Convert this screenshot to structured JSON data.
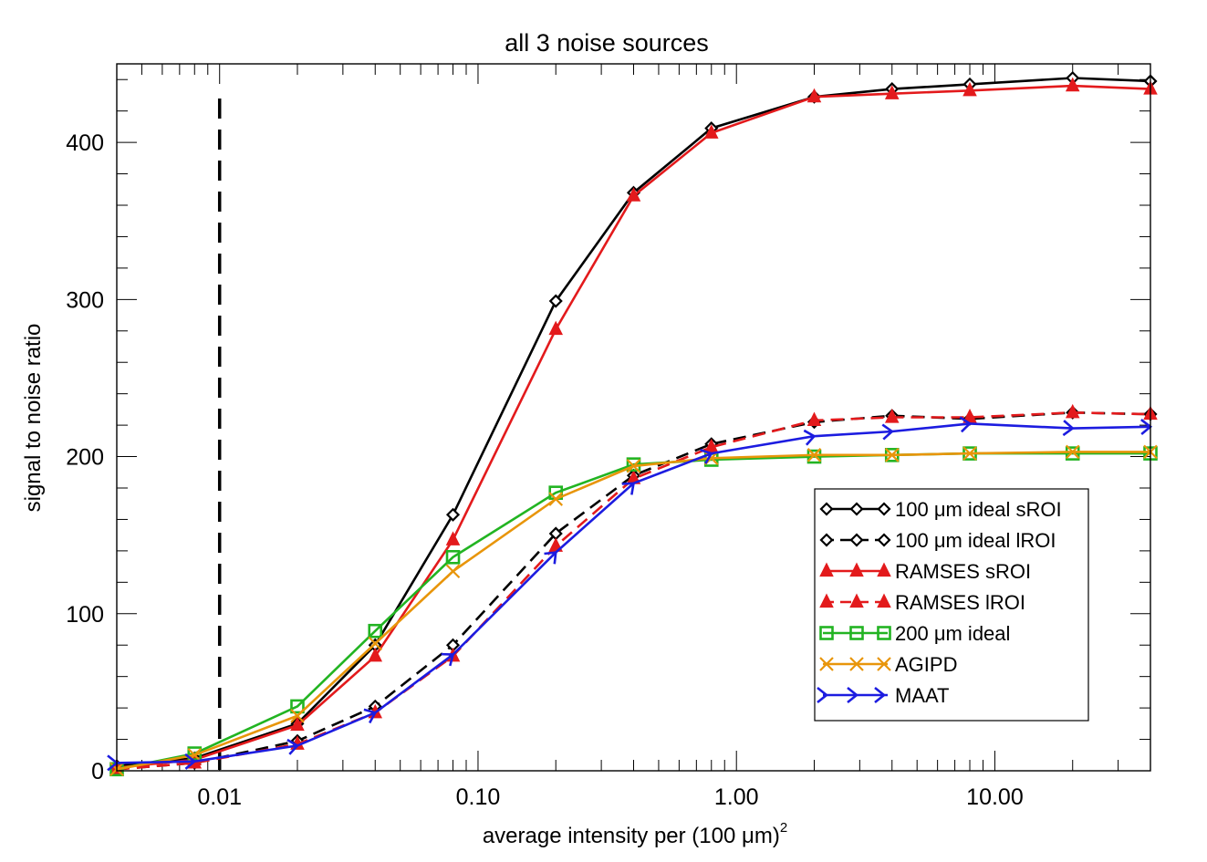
{
  "chart_data": {
    "type": "line",
    "title": "all 3 noise sources",
    "xlabel": "average intensity per (100 μm)",
    "xlabel_superscript": "2",
    "ylabel": "signal to noise ratio",
    "xscale": "log",
    "xlim": [
      0.004,
      40
    ],
    "ylim": [
      0,
      450
    ],
    "x_ticks": [
      0.01,
      0.1,
      1,
      10
    ],
    "x_tick_labels": [
      "0.01",
      "0.10",
      "1.00",
      "10.00"
    ],
    "y_ticks": [
      0,
      100,
      200,
      300,
      400
    ],
    "y_tick_labels": [
      "0",
      "100",
      "200",
      "300",
      "400"
    ],
    "reference_line": {
      "x": 0.01,
      "style": "dashed",
      "color": "#000000"
    },
    "legend_position": "center-right",
    "x": [
      0.004,
      0.008,
      0.02,
      0.04,
      0.08,
      0.2,
      0.4,
      0.8,
      2,
      4,
      8,
      20,
      40
    ],
    "series": [
      {
        "name": "100 μm ideal sROI",
        "color": "#000000",
        "dash": "solid",
        "marker": "diamond",
        "values": [
          3,
          8,
          30,
          80,
          163,
          299,
          368,
          409,
          429,
          434,
          437,
          441,
          439
        ]
      },
      {
        "name": "100 μm ideal lROI",
        "color": "#000000",
        "dash": "dashed",
        "marker": "diamond",
        "values": [
          1,
          5,
          19,
          41,
          80,
          151,
          188,
          208,
          222,
          226,
          224,
          228,
          227
        ]
      },
      {
        "name": "RAMSES sROI",
        "color": "#e31a1c",
        "dash": "solid",
        "marker": "triangle",
        "values": [
          2,
          7,
          29,
          73,
          147,
          281,
          366,
          406,
          429,
          431,
          433,
          436,
          434
        ]
      },
      {
        "name": "RAMSES lROI",
        "color": "#e31a1c",
        "dash": "dashed",
        "marker": "triangle",
        "values": [
          1,
          5,
          17,
          37,
          73,
          143,
          186,
          206,
          223,
          225,
          225,
          228,
          227
        ]
      },
      {
        "name": "200 μm ideal",
        "color": "#22b422",
        "dash": "solid",
        "marker": "square",
        "values": [
          1,
          11,
          41,
          89,
          136,
          177,
          195,
          198,
          200,
          201,
          202,
          202,
          202
        ]
      },
      {
        "name": "AGIPD",
        "color": "#e8950a",
        "dash": "solid",
        "marker": "x",
        "values": [
          1,
          10,
          35,
          81,
          127,
          173,
          194,
          199,
          201,
          201,
          202,
          203,
          203
        ]
      },
      {
        "name": "MAAT",
        "color": "#1c1ce0",
        "dash": "solid",
        "marker": "arrow",
        "values": [
          5,
          6,
          16,
          37,
          74,
          139,
          183,
          202,
          213,
          216,
          221,
          218,
          219
        ]
      }
    ]
  }
}
